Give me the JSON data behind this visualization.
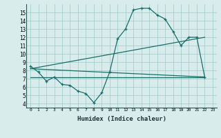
{
  "xlabel": "Humidex (Indice chaleur)",
  "ylabel": "",
  "xlim": [
    -0.5,
    23.5
  ],
  "ylim": [
    3.5,
    16
  ],
  "xticks": [
    0,
    1,
    2,
    3,
    4,
    5,
    6,
    7,
    8,
    9,
    10,
    11,
    12,
    13,
    14,
    15,
    16,
    17,
    18,
    19,
    20,
    21,
    22,
    23
  ],
  "yticks": [
    4,
    5,
    6,
    7,
    8,
    9,
    10,
    11,
    12,
    13,
    14,
    15
  ],
  "bg_color": "#d8edeb",
  "line_color": "#1a6b6b",
  "line1_x": [
    0,
    1,
    2,
    3,
    4,
    5,
    6,
    7,
    8,
    9,
    10,
    11,
    12,
    13,
    14,
    15,
    16,
    17,
    18,
    19,
    20,
    21,
    22
  ],
  "line1_y": [
    8.5,
    7.8,
    6.7,
    7.2,
    6.3,
    6.2,
    5.5,
    5.2,
    4.1,
    5.3,
    7.8,
    11.8,
    13.0,
    15.3,
    15.5,
    15.5,
    14.7,
    14.2,
    12.7,
    11.0,
    12.0,
    12.0,
    7.2
  ],
  "line2_x": [
    0,
    22
  ],
  "line2_y": [
    7.2,
    7.2
  ],
  "line3_x": [
    0,
    22
  ],
  "line3_y": [
    8.2,
    7.2
  ],
  "line4_x": [
    0,
    22
  ],
  "line4_y": [
    8.2,
    12.0
  ]
}
